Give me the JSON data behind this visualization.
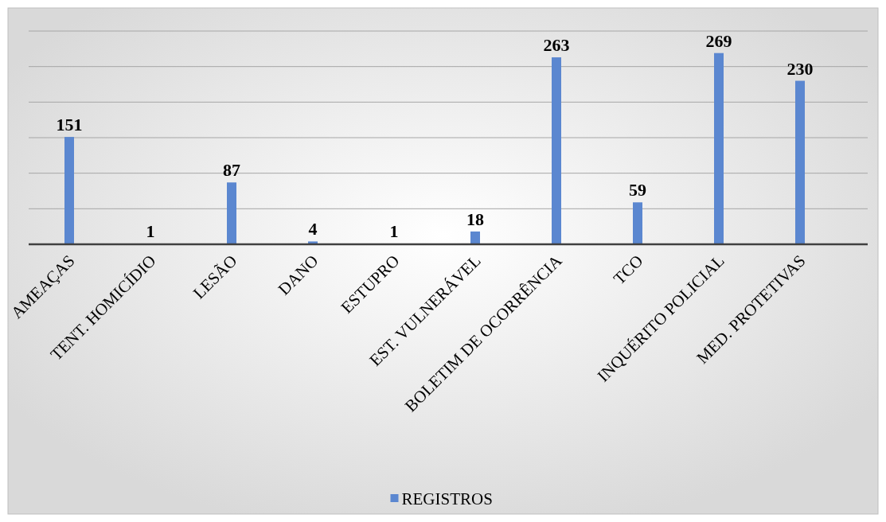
{
  "chart_data": {
    "type": "bar",
    "categories": [
      "AMEAÇAS",
      "TENT. HOMICÍDIO",
      "LESÃO",
      "DANO",
      "ESTUPRO",
      "EST. VULNERÁVEL",
      "BOLETIM DE OCORRÊNCIA",
      "TCO",
      "INQUÉRITO POLICIAL",
      "MED. PROTETIVAS"
    ],
    "series": [
      {
        "name": "REGISTROS",
        "color": "#5b87d0",
        "values": [
          151,
          1,
          87,
          4,
          1,
          18,
          263,
          59,
          269,
          230
        ]
      }
    ],
    "ylim": [
      0,
      300
    ],
    "yticks": [
      {
        "value": 0,
        "label": null
      },
      {
        "value": 50,
        "label": null
      },
      {
        "value": 100,
        "label": null
      },
      {
        "value": 150,
        "label": null
      },
      {
        "value": 200,
        "label": null
      },
      {
        "value": 250,
        "label": null
      },
      {
        "value": 300,
        "label": null
      }
    ],
    "tick_labels": "x",
    "grid": "y",
    "data_labels": true,
    "legend": "bottom"
  }
}
